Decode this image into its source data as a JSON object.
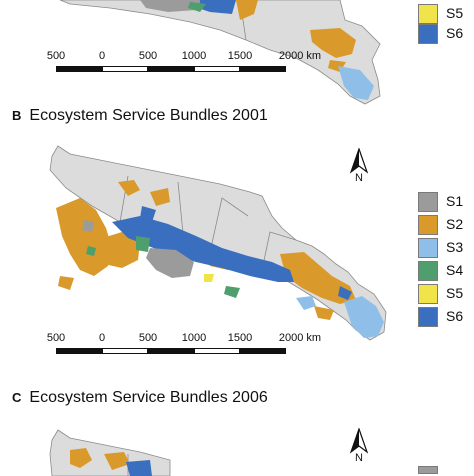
{
  "legend_categories": [
    {
      "label": "S1",
      "color": "#9b9b9b"
    },
    {
      "label": "S2",
      "color": "#d99a2b"
    },
    {
      "label": "S3",
      "color": "#8fbfe8"
    },
    {
      "label": "S4",
      "color": "#4f9e6e"
    },
    {
      "label": "S5",
      "color": "#f0e44a"
    },
    {
      "label": "S6",
      "color": "#3a6fbf"
    }
  ],
  "scale_labels": [
    "500",
    "0",
    "500",
    "1000",
    "1500",
    "2000 km"
  ],
  "north_label": "N",
  "panels": {
    "A": {
      "legend": [
        {
          "label": "S5",
          "color": "#f0e44a"
        },
        {
          "label": "S6",
          "color": "#3a6fbf"
        }
      ]
    },
    "B": {
      "letter": "B",
      "title": "Ecosystem Service Bundles 2001"
    },
    "C": {
      "letter": "C",
      "title": "Ecosystem Service Bundles 2006"
    }
  },
  "colors": {
    "land": "#dcdcdc",
    "border": "#8a8a8a"
  }
}
